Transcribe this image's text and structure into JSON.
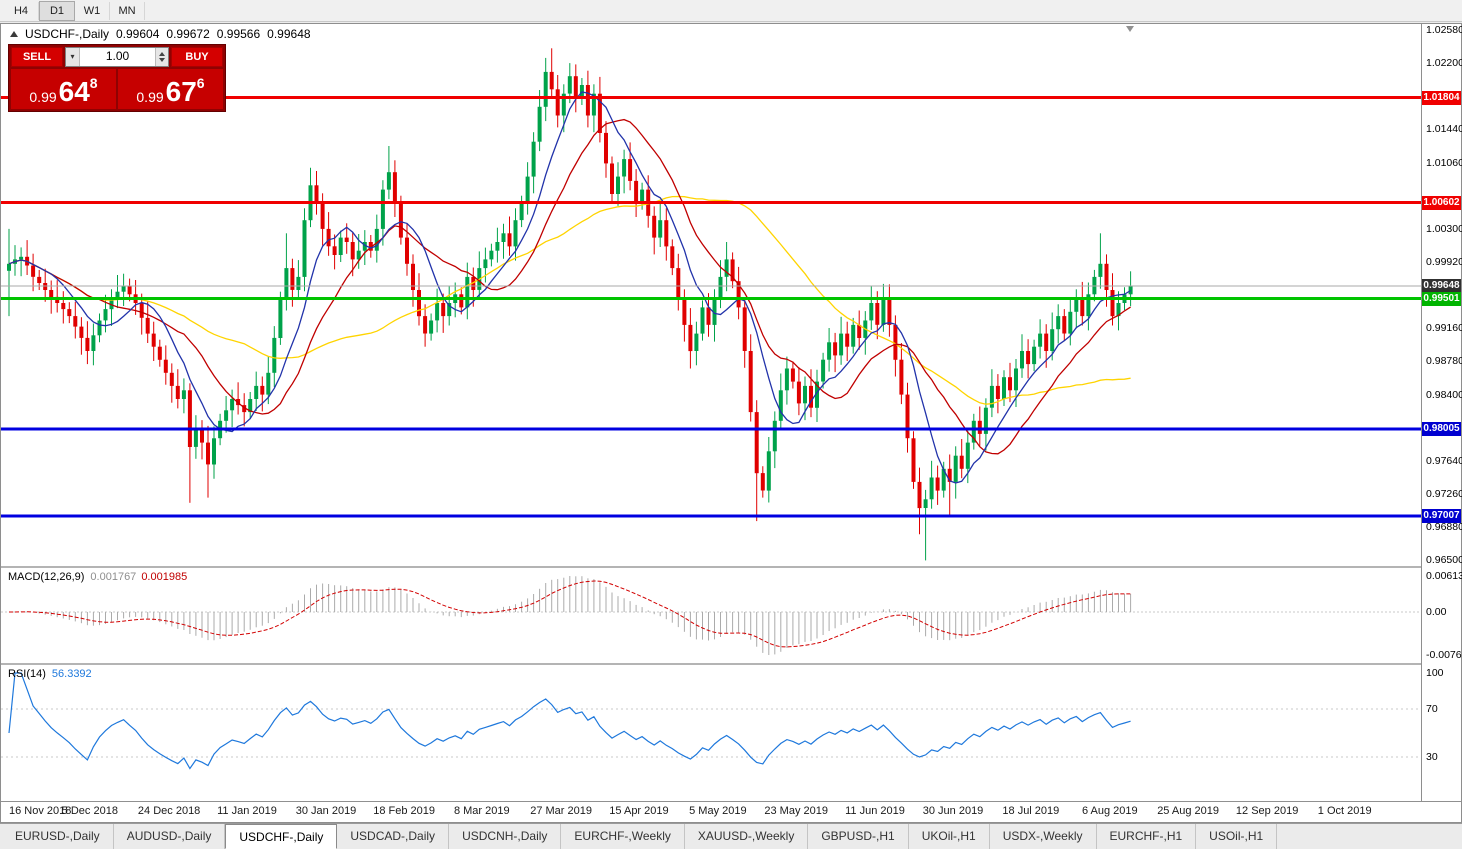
{
  "toolbar": {
    "periods": [
      {
        "label": "H4",
        "active": false
      },
      {
        "label": "D1",
        "active": true
      },
      {
        "label": "W1",
        "active": false
      },
      {
        "label": "MN",
        "active": false
      }
    ]
  },
  "chart_header": {
    "symbol_period": "USDCHF-,Daily",
    "open": "0.99604",
    "high": "0.99672",
    "low": "0.99566",
    "close": "0.99648"
  },
  "one_click": {
    "sell_label": "SELL",
    "buy_label": "BUY",
    "volume": "1.00",
    "sell": {
      "prefix": "0.99",
      "big": "64",
      "sup": "8"
    },
    "buy": {
      "prefix": "0.99",
      "big": "67",
      "sup": "6"
    }
  },
  "price_axis": {
    "labels": [
      {
        "text": "1.02580",
        "price": 1.0258
      },
      {
        "text": "1.02200",
        "price": 1.022
      },
      {
        "text": "1.01440",
        "price": 1.0144
      },
      {
        "text": "1.01060",
        "price": 1.0106
      },
      {
        "text": "1.00300",
        "price": 1.003
      },
      {
        "text": "0.99920",
        "price": 0.9992
      },
      {
        "text": "0.99160",
        "price": 0.9916
      },
      {
        "text": "0.98780",
        "price": 0.9878
      },
      {
        "text": "0.98400",
        "price": 0.984
      },
      {
        "text": "0.97640",
        "price": 0.9764
      },
      {
        "text": "0.97260",
        "price": 0.9726
      },
      {
        "text": "0.96880",
        "price": 0.9688
      },
      {
        "text": "0.96500",
        "price": 0.965
      }
    ],
    "badges": [
      {
        "text": "1.01804",
        "price": 1.01804,
        "bg": "#F00000"
      },
      {
        "text": "1.00602",
        "price": 1.00602,
        "bg": "#F00000"
      },
      {
        "text": "0.99648",
        "price": 0.99648,
        "bg": "#303030"
      },
      {
        "text": "0.99501",
        "price": 0.99501,
        "bg": "#00B400"
      },
      {
        "text": "0.98005",
        "price": 0.98005,
        "bg": "#0000D0"
      },
      {
        "text": "0.97007",
        "price": 0.97007,
        "bg": "#0000D0"
      }
    ]
  },
  "indicators": {
    "macd": {
      "label": "MACD(12,26,9)",
      "value_main": "0.001767",
      "value_signal": "0.001985",
      "axis": {
        "max": "0.00613",
        "zero": "0.00",
        "min": "-0.00761"
      }
    },
    "rsi": {
      "label": "RSI(14)",
      "value": "56.3392",
      "axis_labels": [
        "100",
        "70",
        "30"
      ],
      "levels": [
        70,
        30
      ]
    }
  },
  "tabs": [
    {
      "label": "EURUSD-,Daily",
      "active": false
    },
    {
      "label": "AUDUSD-,Daily",
      "active": false
    },
    {
      "label": "USDCHF-,Daily",
      "active": true
    },
    {
      "label": "USDCAD-,Daily",
      "active": false
    },
    {
      "label": "USDCNH-,Daily",
      "active": false
    },
    {
      "label": "EURCHF-,Weekly",
      "active": false
    },
    {
      "label": "XAUUSD-,Weekly",
      "active": false
    },
    {
      "label": "GBPUSD-,H1",
      "active": false
    },
    {
      "label": "UKOil-,H1",
      "active": false
    },
    {
      "label": "USDX-,Weekly",
      "active": false
    },
    {
      "label": "EURCHF-,H1",
      "active": false
    },
    {
      "label": "USOil-,H1",
      "active": false
    }
  ],
  "colors": {
    "candle_up": "#00A24A",
    "candle_down": "#E00000",
    "macd_histogram": "#ABABAB",
    "macd_signal": "#D20000",
    "rsi_line": "#1E78DC"
  },
  "chart_data": {
    "type": "candlestick",
    "symbol": "USDCHF-",
    "timeframe": "Daily",
    "ohlc_display": {
      "open": 0.99604,
      "high": 0.99672,
      "low": 0.99566,
      "close": 0.99648
    },
    "y_range": [
      0.9647,
      1.0258
    ],
    "first_open": 0.9982,
    "closes": [
      0.999,
      0.9995,
      0.9998,
      0.9988,
      0.9975,
      0.9968,
      0.996,
      0.9952,
      0.9945,
      0.9938,
      0.993,
      0.9918,
      0.9905,
      0.989,
      0.9908,
      0.9925,
      0.9938,
      0.995,
      0.9958,
      0.9965,
      0.9955,
      0.9945,
      0.9928,
      0.991,
      0.9895,
      0.988,
      0.9865,
      0.985,
      0.9835,
      0.9845,
      0.978,
      0.98,
      0.9785,
      0.976,
      0.979,
      0.981,
      0.9822,
      0.9835,
      0.9828,
      0.982,
      0.9835,
      0.985,
      0.984,
      0.9865,
      0.9905,
      0.995,
      0.9985,
      0.996,
      0.9975,
      1.004,
      1.008,
      1.006,
      1.003,
      1.001,
      1.0,
      1.002,
      1.0015,
      0.9995,
      1.0005,
      1.0015,
      1.0005,
      1.003,
      1.0075,
      1.0095,
      1.006,
      1.002,
      0.999,
      0.996,
      0.993,
      0.991,
      0.9925,
      0.9945,
      0.993,
      0.9945,
      0.9955,
      0.994,
      0.9975,
      0.996,
      0.9985,
      0.9995,
      1.0005,
      1.0015,
      1.0025,
      1.001,
      1.004,
      1.006,
      1.009,
      1.013,
      1.017,
      1.021,
      1.019,
      1.016,
      1.0185,
      1.0205,
      1.018,
      1.0195,
      1.016,
      1.0185,
      1.014,
      1.0105,
      1.007,
      1.009,
      1.011,
      1.0085,
      1.006,
      1.0075,
      1.0045,
      1.002,
      1.004,
      1.001,
      0.9985,
      0.995,
      0.992,
      0.989,
      0.991,
      0.994,
      0.992,
      0.995,
      0.9975,
      0.9995,
      0.997,
      0.994,
      0.989,
      0.982,
      0.975,
      0.973,
      0.9775,
      0.981,
      0.9845,
      0.987,
      0.9855,
      0.983,
      0.985,
      0.9825,
      0.9855,
      0.988,
      0.99,
      0.9885,
      0.991,
      0.9895,
      0.992,
      0.9905,
      0.9925,
      0.9945,
      0.992,
      0.995,
      0.992,
      0.988,
      0.984,
      0.979,
      0.974,
      0.971,
      0.972,
      0.9745,
      0.973,
      0.9755,
      0.974,
      0.977,
      0.9755,
      0.9785,
      0.981,
      0.9795,
      0.9825,
      0.985,
      0.9835,
      0.986,
      0.9845,
      0.987,
      0.989,
      0.9875,
      0.9895,
      0.991,
      0.989,
      0.9915,
      0.993,
      0.991,
      0.9935,
      0.995,
      0.993,
      0.9955,
      0.9975,
      0.999,
      0.996,
      0.993,
      0.9945,
      0.9955,
      0.9965
    ],
    "wick_high_overrides": {
      "0": 1.003,
      "46": 1.0025,
      "50": 1.01,
      "63": 1.0125,
      "89": 1.0226,
      "90": 1.0237,
      "93": 1.022,
      "119": 1.0015,
      "145": 0.9967,
      "181": 1.0025
    },
    "wick_low_overrides": {
      "0": 0.993,
      "13": 0.9875,
      "30": 0.9716,
      "33": 0.9722,
      "69": 0.9895,
      "113": 0.987,
      "124": 0.9695,
      "151": 0.968,
      "152": 0.965,
      "156": 0.97
    },
    "horizontal_lines": [
      {
        "price": 1.01804,
        "color": "#F00000",
        "width": 3
      },
      {
        "price": 1.00602,
        "color": "#F00000",
        "width": 3
      },
      {
        "price": 0.99501,
        "color": "#00C400",
        "width": 3
      },
      {
        "price": 0.98005,
        "color": "#0000E0",
        "width": 3
      },
      {
        "price": 0.97007,
        "color": "#0000E0",
        "width": 3
      }
    ],
    "current_price_line": {
      "price": 0.99648,
      "color": "#A8A8A8"
    },
    "moving_averages": [
      {
        "period": 40,
        "color": "#FFD400"
      },
      {
        "period": 16,
        "color": "#C00000"
      },
      {
        "period": 8,
        "color": "#2233AA"
      }
    ],
    "x_labels": [
      "16 Nov 2018",
      "5 Dec 2018",
      "24 Dec 2018",
      "11 Jan 2019",
      "30 Jan 2019",
      "18 Feb 2019",
      "8 Mar 2019",
      "27 Mar 2019",
      "15 Apr 2019",
      "5 May 2019",
      "23 May 2019",
      "11 Jun 2019",
      "30 Jun 2019",
      "18 Jul 2019",
      "6 Aug 2019",
      "25 Aug 2019",
      "12 Sep 2019",
      "1 Oct 2019"
    ]
  }
}
